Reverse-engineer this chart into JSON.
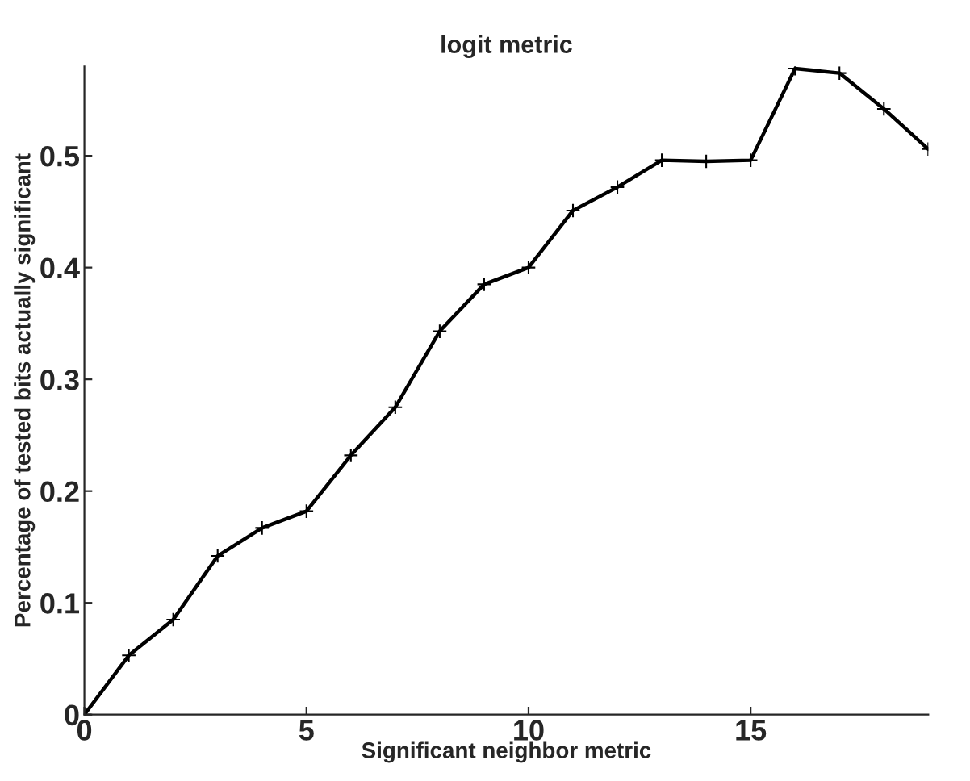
{
  "chart_data": {
    "type": "line",
    "title": "logit metric",
    "xlabel": "Significant neighbor metric",
    "ylabel": "Percentage of tested bits actually significant",
    "x": [
      0,
      1,
      2,
      3,
      4,
      5,
      6,
      7,
      8,
      9,
      10,
      11,
      12,
      13,
      14,
      15,
      16,
      17,
      18,
      19
    ],
    "series": [
      {
        "color": "#000000",
        "values": [
          0,
          0.053,
          0.085,
          0.142,
          0.167,
          0.182,
          0.232,
          0.275,
          0.343,
          0.385,
          0.4,
          0.451,
          0.472,
          0.496,
          0.495,
          0.496,
          0.578,
          0.574,
          0.542,
          0.506
        ]
      }
    ],
    "xlim": [
      0,
      19
    ],
    "ylim": [
      0,
      0.58
    ],
    "xticks": [
      0,
      5,
      10,
      15
    ],
    "yticks": [
      0,
      0.1,
      0.2,
      0.3,
      0.4,
      0.5
    ],
    "grid": false,
    "marker": "cross",
    "line_style": "solid"
  }
}
